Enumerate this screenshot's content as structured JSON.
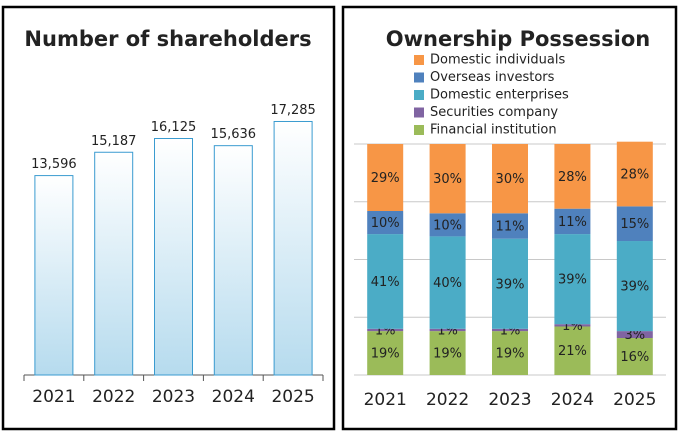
{
  "chart_data": [
    {
      "type": "bar",
      "title": "Number of shareholders",
      "categories": [
        "2021",
        "2022",
        "2023",
        "2024",
        "2025"
      ],
      "values": [
        13596,
        15187,
        16125,
        15636,
        17285
      ],
      "value_labels": [
        "13,596",
        "15,187",
        "16,125",
        "15,636",
        "17,285"
      ],
      "ylim": [
        0,
        18000
      ]
    },
    {
      "type": "stacked_bar",
      "title": "Ownership Possession",
      "categories": [
        "2021",
        "2022",
        "2023",
        "2024",
        "2025"
      ],
      "series": [
        {
          "name": "Financial institution",
          "color": "#9bbb59",
          "values": [
            19,
            19,
            19,
            21,
            16
          ],
          "value_labels": [
            "19%",
            "19%",
            "19%",
            "21%",
            "16%"
          ]
        },
        {
          "name": "Securities company",
          "color": "#8064a2",
          "values": [
            1,
            1,
            1,
            1,
            3
          ],
          "value_labels": [
            "1%",
            "1%",
            "1%",
            "1%",
            "3%"
          ]
        },
        {
          "name": "Domestic enterprises",
          "color": "#4bacc6",
          "values": [
            41,
            40,
            39,
            39,
            39
          ],
          "value_labels": [
            "41%",
            "40%",
            "39%",
            "39%",
            "39%"
          ]
        },
        {
          "name": "Overseas investors",
          "color": "#4f81bd",
          "values": [
            10,
            10,
            11,
            11,
            15
          ],
          "value_labels": [
            "10%",
            "10%",
            "11%",
            "11%",
            "15%"
          ]
        },
        {
          "name": "Domestic individuals",
          "color": "#f79646",
          "values": [
            29,
            30,
            30,
            28,
            28
          ],
          "value_labels": [
            "29%",
            "30%",
            "30%",
            "28%",
            "28%"
          ]
        }
      ],
      "ylim": [
        0,
        100
      ],
      "yticks": [
        0,
        25,
        50,
        75,
        100
      ],
      "grid": true,
      "legend": "top"
    }
  ]
}
